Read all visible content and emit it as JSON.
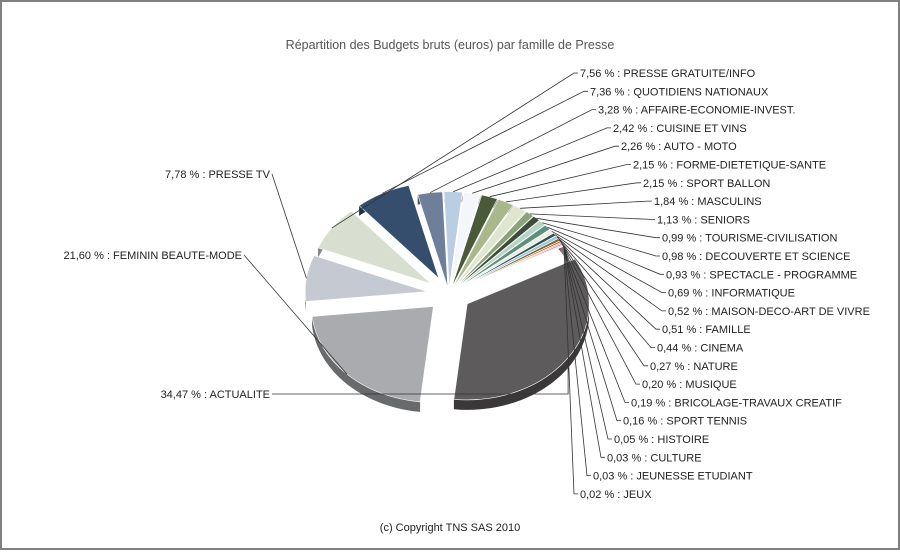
{
  "chart_data": {
    "type": "pie",
    "title": "Répartition des Budgets bruts (euros) par famille de Presse",
    "footer": "(c) Copyright TNS SAS 2010",
    "legend": "none",
    "slices": [
      {
        "label": "PRESSE GRATUITE/INFO",
        "value": 7.56,
        "text": "7,56 % : PRESSE GRATUITE/INFO",
        "color": "#d9dfd0"
      },
      {
        "label": "QUOTIDIENS NATIONAUX",
        "value": 7.36,
        "text": "7,36 % : QUOTIDIENS NATIONAUX",
        "color": "#364e6e"
      },
      {
        "label": "AFFAIRE-ECONOMIE-INVEST.",
        "value": 3.28,
        "text": "3,28 % : AFFAIRE-ECONOMIE-INVEST.",
        "color": "#6f7f9a"
      },
      {
        "label": "CUISINE ET VINS",
        "value": 2.42,
        "text": "2,42 % : CUISINE ET VINS",
        "color": "#b9cde3"
      },
      {
        "label": "AUTO - MOTO",
        "value": 2.26,
        "text": "2,26 % : AUTO - MOTO",
        "color": "#f3f6fa"
      },
      {
        "label": "FORME-DIETETIQUE-SANTE",
        "value": 2.15,
        "text": "2,15 % : FORME-DIETETIQUE-SANTE",
        "color": "#4a5a38"
      },
      {
        "label": "SPORT BALLON",
        "value": 2.15,
        "text": "2,15 % : SPORT BALLON",
        "color": "#a9b88c"
      },
      {
        "label": "MASCULINS",
        "value": 1.84,
        "text": "1,84 % : MASCULINS",
        "color": "#dfe6cf"
      },
      {
        "label": "SENIORS",
        "value": 1.13,
        "text": "1,13 % : SENIORS",
        "color": "#8aa37a"
      },
      {
        "label": "TOURISME-CIVILISATION",
        "value": 0.99,
        "text": "0,99 % : TOURISME-CIVILISATION",
        "color": "#3e4d3a"
      },
      {
        "label": "DECOUVERTE ET SCIENCE",
        "value": 0.98,
        "text": "0,98 % : DECOUVERTE ET SCIENCE",
        "color": "#b8d4c4"
      },
      {
        "label": "SPECTACLE - PROGRAMME",
        "value": 0.93,
        "text": "0,93 % : SPECTACLE - PROGRAMME",
        "color": "#5e8f7c"
      },
      {
        "label": "INFORMATIQUE",
        "value": 0.69,
        "text": "0,69 % : INFORMATIQUE",
        "color": "#e8efe0"
      },
      {
        "label": "MAISON-DECO-ART DE VIVRE",
        "value": 0.52,
        "text": "0,52 % : MAISON-DECO-ART DE VIVRE",
        "color": "#2f4f55"
      },
      {
        "label": "FAMILLE",
        "value": 0.51,
        "text": "0,51 % : FAMILLE",
        "color": "#9ec7cf"
      },
      {
        "label": "CINEMA",
        "value": 0.44,
        "text": "0,44 % : CINEMA",
        "color": "#7a6a3a"
      },
      {
        "label": "NATURE",
        "value": 0.27,
        "text": "0,27 % : NATURE",
        "color": "#c8583a"
      },
      {
        "label": "MUSIQUE",
        "value": 0.2,
        "text": "0,20 % : MUSIQUE",
        "color": "#d9a040"
      },
      {
        "label": "BRICOLAGE-TRAVAUX CREATIF",
        "value": 0.19,
        "text": "0,19 % : BRICOLAGE-TRAVAUX CREATIF",
        "color": "#7f5a8a"
      },
      {
        "label": "SPORT TENNIS",
        "value": 0.16,
        "text": "0,16 % : SPORT TENNIS",
        "color": "#c0a0c8"
      },
      {
        "label": "HISTOIRE",
        "value": 0.05,
        "text": "0,05 % : HISTOIRE",
        "color": "#8a8a8a"
      },
      {
        "label": "CULTURE",
        "value": 0.03,
        "text": "0,03 % : CULTURE",
        "color": "#506080"
      },
      {
        "label": "JEUNESSE ETUDIANT",
        "value": 0.03,
        "text": "0,03 % : JEUNESSE ETUDIANT",
        "color": "#607050"
      },
      {
        "label": "JEUX",
        "value": 0.02,
        "text": "0,02 % : JEUX",
        "color": "#405040"
      },
      {
        "label": "ACTUALITE",
        "value": 34.47,
        "text": "34,47 % : ACTUALITE",
        "color": "#5e5b5c"
      },
      {
        "label": "FEMININ BEAUTE-MODE",
        "value": 21.6,
        "text": "21,60 % : FEMININ BEAUTE-MODE",
        "color": "#a9abae"
      },
      {
        "label": "PRESSE TV",
        "value": 7.78,
        "text": "7,78 % : PRESSE TV",
        "color": "#c4c9d2"
      }
    ]
  }
}
